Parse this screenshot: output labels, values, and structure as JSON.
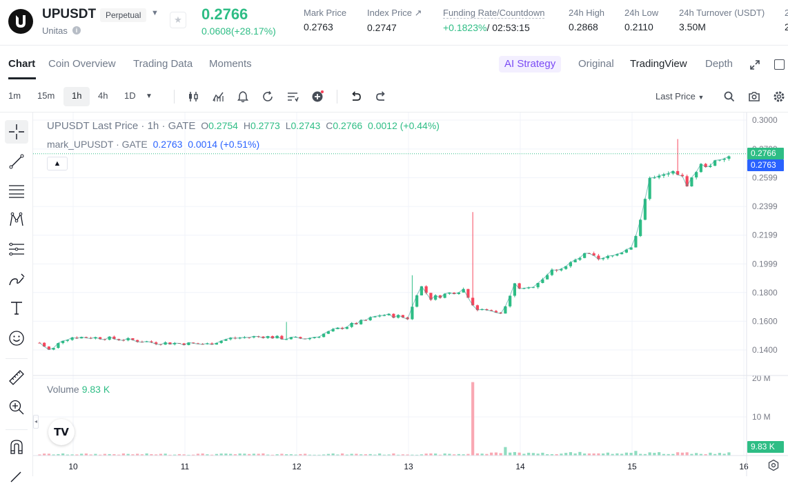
{
  "header": {
    "symbol": "UPUSDT",
    "contract_type": "Perpetual",
    "project": "Unitas",
    "last_price": "0.2766",
    "change": "0.0608(+28.17%)",
    "stats": [
      {
        "label": "Mark Price",
        "value": "0.2763"
      },
      {
        "label": "Index Price ↗",
        "value": "0.2747"
      },
      {
        "label": "Funding Rate/Countdown",
        "value_rate": "+0.1823%",
        "value_countdown": "/ 02:53:15"
      },
      {
        "label": "24h High",
        "value": "0.2868"
      },
      {
        "label": "24h Low",
        "value": "0.2110"
      },
      {
        "label": "24h Turnover (USDT)",
        "value": "3.50M"
      },
      {
        "label": "2",
        "value": "2"
      }
    ]
  },
  "tabs": [
    "Chart",
    "Coin Overview",
    "Trading Data",
    "Moments"
  ],
  "views": {
    "strategy": "Strategy",
    "strategy_prefix": "AI",
    "original": "Original",
    "tradingview": "TradingView",
    "depth": "Depth"
  },
  "toolbar": {
    "intervals": [
      "1m",
      "15m",
      "1h",
      "4h",
      "1D"
    ],
    "price_type": "Last Price"
  },
  "chart": {
    "legend_title": "UPUSDT Last Price · 1h · GATE",
    "ohlc": {
      "o": "0.2754",
      "h": "0.2773",
      "l": "0.2743",
      "c": "0.2766",
      "chg": "0.0012 (+0.44%)"
    },
    "mark_label": "mark_UPUSDT · GATE",
    "mark_values": "0.2763  0.0014 (+0.51%)",
    "volume_label": "Volume",
    "volume_value": "9.83 K",
    "last_tag": "0.2766",
    "mark_tag": "0.2763",
    "volume_tag": "9.83 K",
    "colors": {
      "up": "#2ebd85",
      "down": "#f6465d",
      "mark": "#2962ff",
      "up_vol": "#8fdcc0",
      "down_vol": "#f9a8b3"
    }
  },
  "chart_data": {
    "type": "candlestick",
    "price_axis": [
      "0.3000",
      "0.2799",
      "0.2599",
      "0.2399",
      "0.2199",
      "0.1999",
      "0.1800",
      "0.1600",
      "0.1400"
    ],
    "volume_axis": [
      "20 M",
      "10 M"
    ],
    "x_ticks": [
      "10",
      "11",
      "12",
      "13",
      "14",
      "15",
      "16"
    ],
    "x_tick_values": [
      10,
      11,
      12,
      13,
      14,
      15,
      16
    ],
    "x_start": 9.7,
    "ylim": [
      0.12,
      0.3
    ],
    "volume_max": 20,
    "volume_unit": "M",
    "close_keypoints": [
      [
        9.7,
        0.145
      ],
      [
        9.8,
        0.139
      ],
      [
        9.9,
        0.147
      ],
      [
        10.0,
        0.149
      ],
      [
        10.25,
        0.1485
      ],
      [
        10.5,
        0.147
      ],
      [
        10.75,
        0.145
      ],
      [
        11.0,
        0.1445
      ],
      [
        11.2,
        0.144
      ],
      [
        11.4,
        0.148
      ],
      [
        11.7,
        0.1495
      ],
      [
        11.9,
        0.148
      ],
      [
        12.1,
        0.148
      ],
      [
        12.2,
        0.15
      ],
      [
        12.4,
        0.1555
      ],
      [
        12.6,
        0.16
      ],
      [
        12.75,
        0.1645
      ],
      [
        12.9,
        0.1635
      ],
      [
        13.0,
        0.162
      ],
      [
        13.1,
        0.1855
      ],
      [
        13.2,
        0.176
      ],
      [
        13.5,
        0.1825
      ],
      [
        13.6,
        0.168
      ],
      [
        13.85,
        0.1665
      ],
      [
        13.95,
        0.1855
      ],
      [
        14.05,
        0.181
      ],
      [
        14.3,
        0.196
      ],
      [
        14.4,
        0.198
      ],
      [
        14.6,
        0.207
      ],
      [
        14.7,
        0.202
      ],
      [
        14.85,
        0.206
      ],
      [
        15.0,
        0.213
      ],
      [
        15.1,
        0.234
      ],
      [
        15.15,
        0.262
      ],
      [
        15.2,
        0.259
      ],
      [
        15.4,
        0.264
      ],
      [
        15.5,
        0.255
      ],
      [
        15.6,
        0.268
      ],
      [
        15.8,
        0.271
      ],
      [
        15.9,
        0.2766
      ]
    ],
    "spikes": [
      {
        "x": 13.58,
        "high": 0.236
      },
      {
        "x": 13.05,
        "high": 0.192
      },
      {
        "x": 15.42,
        "high": 0.2868
      },
      {
        "x": 11.9,
        "high": 0.1595
      }
    ],
    "volume_spikes": [
      {
        "x": 13.58,
        "value": 19.0
      },
      {
        "x": 13.87,
        "value": 2.2
      },
      {
        "x": 15.05,
        "value": 1.2
      }
    ],
    "last_price": 0.2766,
    "mark_price": 0.2763
  }
}
